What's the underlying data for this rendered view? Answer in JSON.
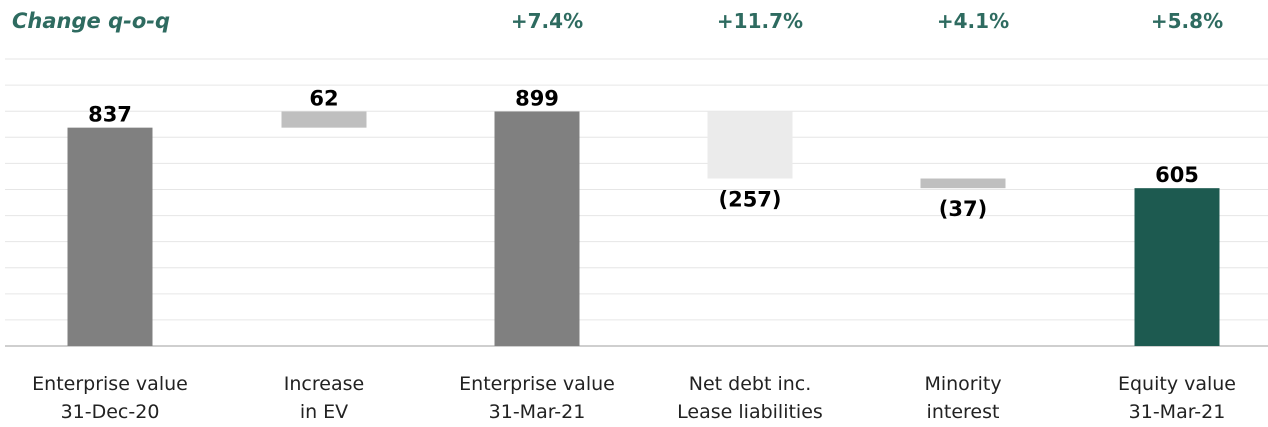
{
  "chart_data": {
    "type": "bar",
    "subtype": "waterfall",
    "title": "Change q-o-q",
    "grid": true,
    "categories": [
      [
        "Enterprise value",
        "31-Dec-20"
      ],
      [
        "Increase",
        "in EV"
      ],
      [
        "Enterprise value",
        "31-Mar-21"
      ],
      [
        "Net debt inc.",
        "Lease liabilities"
      ],
      [
        "Minority",
        "interest"
      ],
      [
        "Equity value",
        "31-Mar-21"
      ]
    ],
    "values": [
      837,
      62,
      899,
      -257,
      -37,
      605
    ],
    "kinds": [
      "total",
      "delta",
      "total",
      "delta",
      "delta",
      "total"
    ],
    "data_labels": [
      "837",
      "62",
      "899",
      "(257)",
      "(37)",
      "605"
    ],
    "changes": [
      "",
      "",
      "+7.4%",
      "+11.7%",
      "+4.1%",
      "+5.8%"
    ],
    "colors": [
      "#808080",
      "#bfbfbf",
      "#808080",
      "#ebebeb",
      "#bfbfbf",
      "#1d5a50"
    ],
    "header_color": "#2e6b60",
    "ylim": [
      0,
      1150
    ]
  }
}
